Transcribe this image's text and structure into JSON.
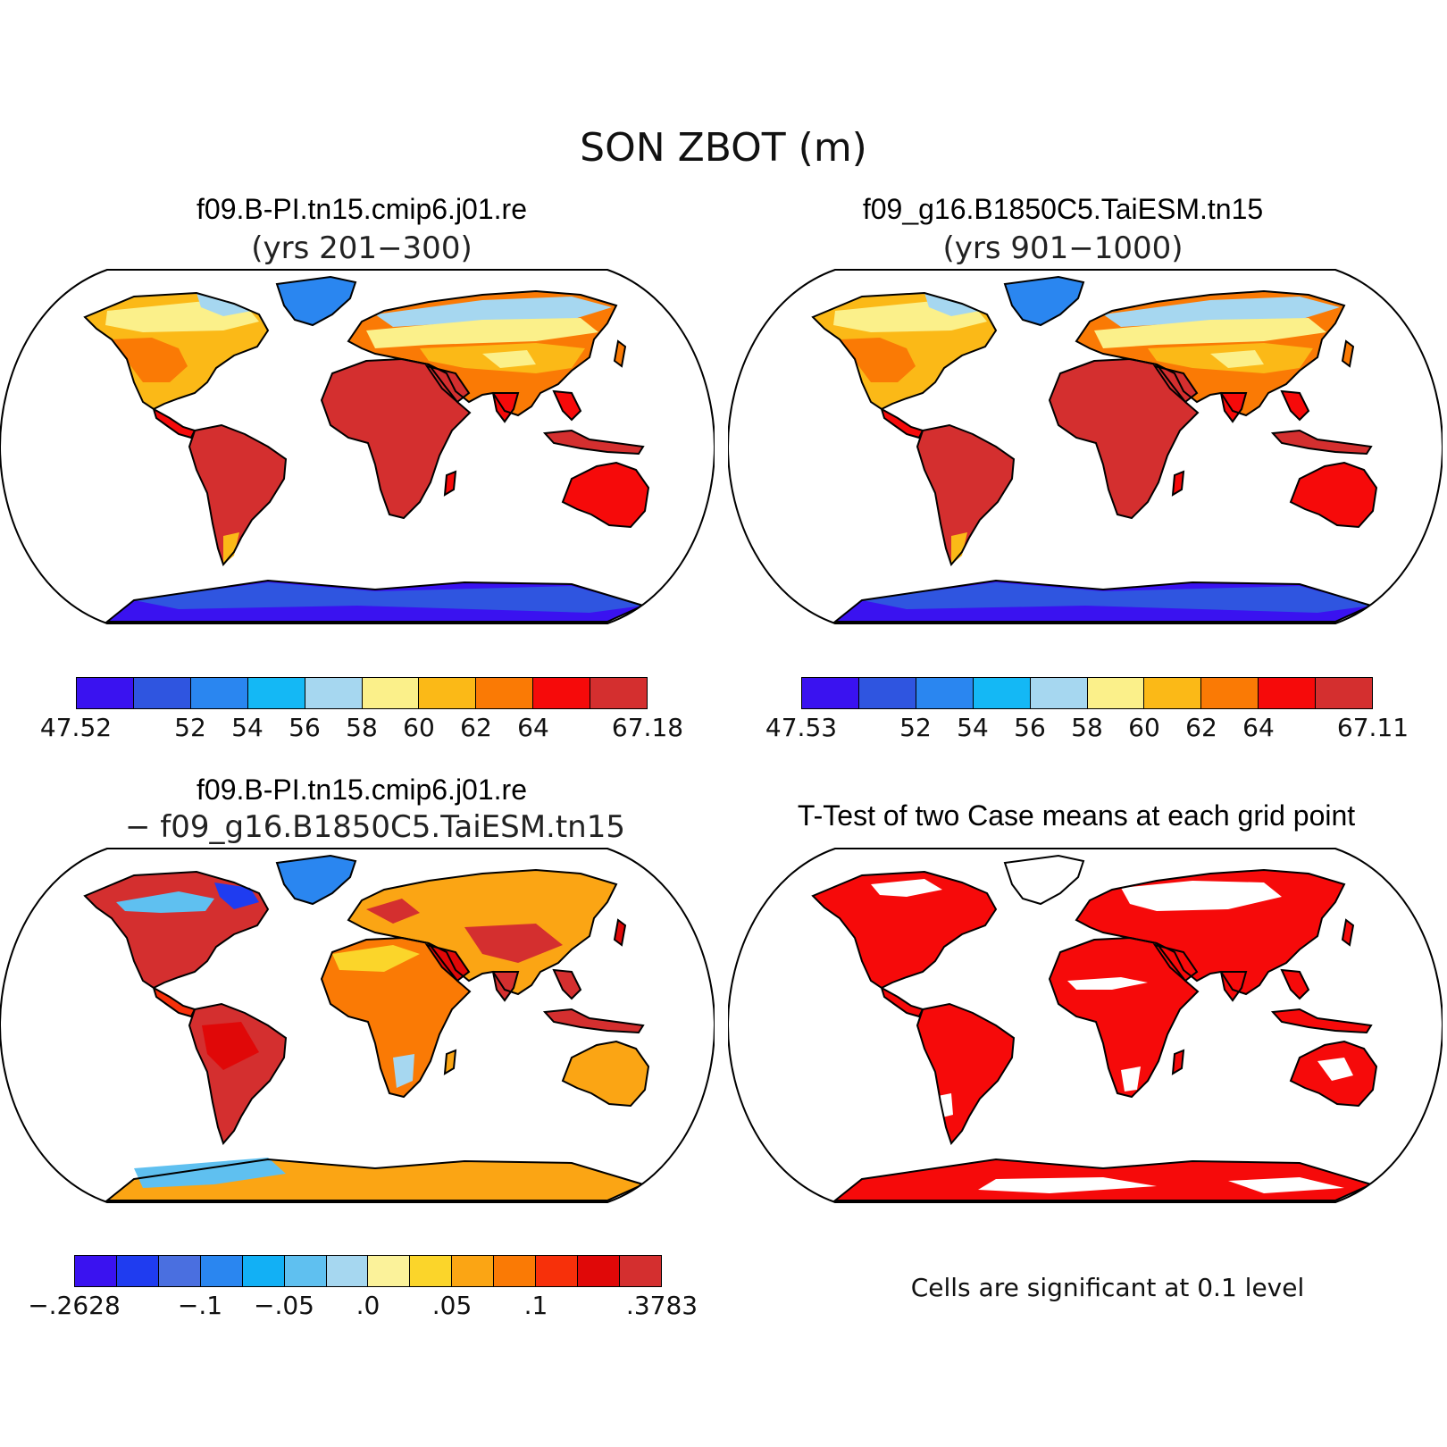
{
  "title": "SON ZBOT (m)",
  "panels": [
    {
      "title": "f09.B-PI.tn15.cmip6.j01.re",
      "subtitle": "(yrs 201−300)",
      "colorbar": {
        "colors": [
          "#3a12f0",
          "#2f55e0",
          "#2a86f0",
          "#14b8f5",
          "#a6d7f0",
          "#fbf08a",
          "#fbb917",
          "#fa7a05",
          "#f60a0a",
          "#d42f2f"
        ],
        "labels": [
          "47.52",
          "52",
          "54",
          "56",
          "58",
          "60",
          "62",
          "64",
          "67.18"
        ],
        "label_boundaries": [
          0,
          2,
          3,
          4,
          5,
          6,
          7,
          8,
          10
        ]
      }
    },
    {
      "title": "f09_g16.B1850C5.TaiESM.tn15",
      "subtitle": "(yrs 901−1000)",
      "colorbar": {
        "colors": [
          "#3a12f0",
          "#2f55e0",
          "#2a86f0",
          "#14b8f5",
          "#a6d7f0",
          "#fbf08a",
          "#fbb917",
          "#fa7a05",
          "#f60a0a",
          "#d42f2f"
        ],
        "labels": [
          "47.53",
          "52",
          "54",
          "56",
          "58",
          "60",
          "62",
          "64",
          "67.11"
        ],
        "label_boundaries": [
          0,
          2,
          3,
          4,
          5,
          6,
          7,
          8,
          10
        ]
      }
    },
    {
      "title": "f09.B-PI.tn15.cmip6.j01.re",
      "subtitle": "− f09_g16.B1850C5.TaiESM.tn15",
      "colorbar": {
        "colors": [
          "#3a12f0",
          "#1f3cf0",
          "#4a6fe0",
          "#2a86f0",
          "#12b0f5",
          "#5fc0f0",
          "#a6d7f0",
          "#fbf29a",
          "#fbd52a",
          "#fba514",
          "#fa7a05",
          "#f7300a",
          "#e00808",
          "#d42f2f"
        ],
        "labels": [
          "−.2628",
          "−.1",
          "−.05",
          ".0",
          ".05",
          ".1",
          ".3783"
        ],
        "label_boundaries": [
          0,
          3,
          5,
          7,
          9,
          11,
          14
        ]
      }
    },
    {
      "title": "T-Test of two Case means at each grid point",
      "note": "Cells are significant at 0.1 level"
    }
  ],
  "colors": {
    "significant": "#f60a0a",
    "coastline": "#000000",
    "background": "#ffffff"
  }
}
